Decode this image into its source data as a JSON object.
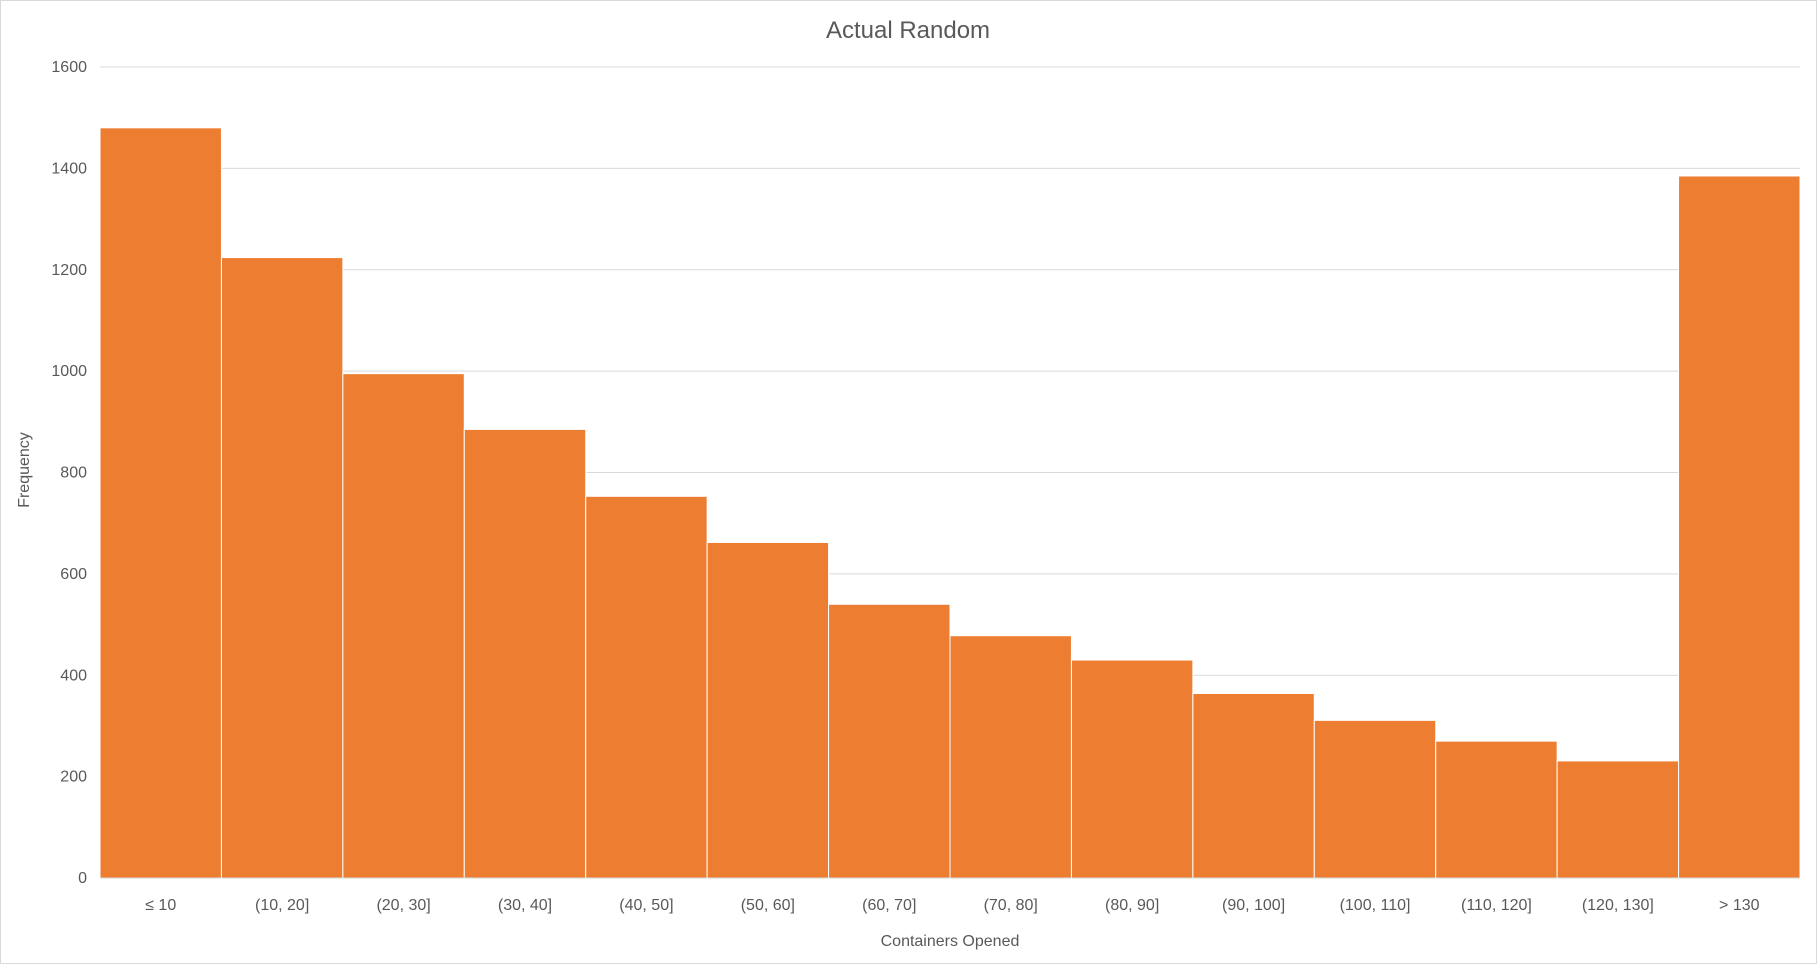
{
  "chart_data": {
    "type": "bar",
    "title": "Actual Random",
    "xlabel": "Containers Opened",
    "ylabel": "Frequency",
    "categories": [
      "≤ 10",
      "(10, 20]",
      "(20, 30]",
      "(30, 40]",
      "(40, 50]",
      "(50, 60]",
      "(60, 70]",
      "(70, 80]",
      "(80, 90]",
      "(90, 100]",
      "(100, 110]",
      "(110, 120]",
      "(120, 130]",
      "> 130"
    ],
    "values": [
      1480,
      1224,
      995,
      885,
      753,
      662,
      540,
      478,
      430,
      364,
      311,
      270,
      231,
      1385
    ],
    "ylim": [
      0,
      1600
    ],
    "yticks": [
      0,
      200,
      400,
      600,
      800,
      1000,
      1200,
      1400,
      1600
    ],
    "bar_color": "#ED7D31",
    "grid": true,
    "legend": "none"
  }
}
